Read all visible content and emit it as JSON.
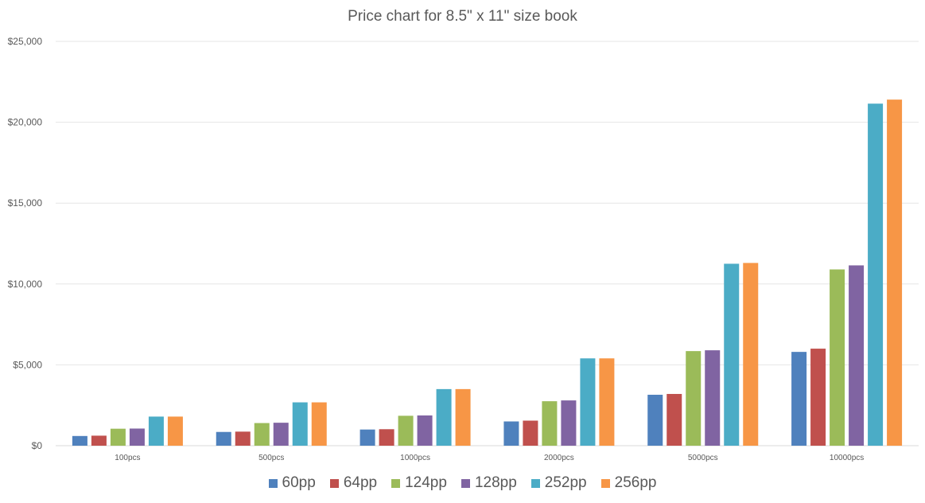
{
  "chart_data": {
    "type": "bar",
    "title": "Price chart for 8.5\" x 11\" size book",
    "categories": [
      "100pcs",
      "500pcs",
      "1000pcs",
      "2000pcs",
      "5000pcs",
      "10000pcs"
    ],
    "series": [
      {
        "name": "60pp",
        "color": "#4f81bd",
        "values": [
          600,
          850,
          1000,
          1500,
          3150,
          5800
        ]
      },
      {
        "name": "64pp",
        "color": "#c0504d",
        "values": [
          620,
          870,
          1020,
          1550,
          3200,
          6000
        ]
      },
      {
        "name": "124pp",
        "color": "#9bbb59",
        "values": [
          1050,
          1400,
          1850,
          2750,
          5850,
          10900
        ]
      },
      {
        "name": "128pp",
        "color": "#8064a2",
        "values": [
          1060,
          1420,
          1870,
          2800,
          5900,
          11150
        ]
      },
      {
        "name": "252pp",
        "color": "#4bacc6",
        "values": [
          1800,
          2680,
          3500,
          5400,
          11250,
          21150
        ]
      },
      {
        "name": "256pp",
        "color": "#f79646",
        "values": [
          1800,
          2680,
          3500,
          5400,
          11300,
          21400
        ]
      }
    ],
    "yticks": [
      "$0",
      "$5,000",
      "$10,000",
      "$15,000",
      "$20,000",
      "$25,000"
    ],
    "ylim": [
      0,
      25000
    ],
    "grid": true,
    "legend_position": "bottom"
  }
}
